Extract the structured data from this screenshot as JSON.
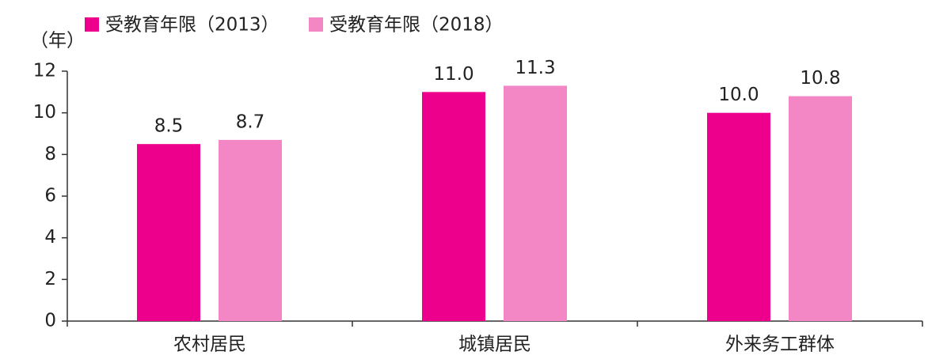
{
  "chart_data": {
    "type": "bar",
    "y_label": "（年）",
    "categories": [
      "农村居民",
      "城镇居民",
      "外来务工群体"
    ],
    "series": [
      {
        "name": "受教育年限（2013）",
        "color": "#ec008c",
        "values": [
          8.5,
          11.0,
          10.0
        ],
        "value_labels": [
          "8.5",
          "11.0",
          "10.0"
        ]
      },
      {
        "name": "受教育年限（2018）",
        "color": "#f386c4",
        "values": [
          8.7,
          11.3,
          10.8
        ],
        "value_labels": [
          "8.7",
          "11.3",
          "10.8"
        ]
      }
    ],
    "ylim": [
      0,
      12
    ],
    "yticks": [
      0,
      2,
      4,
      6,
      8,
      10,
      12
    ],
    "grid": false
  }
}
